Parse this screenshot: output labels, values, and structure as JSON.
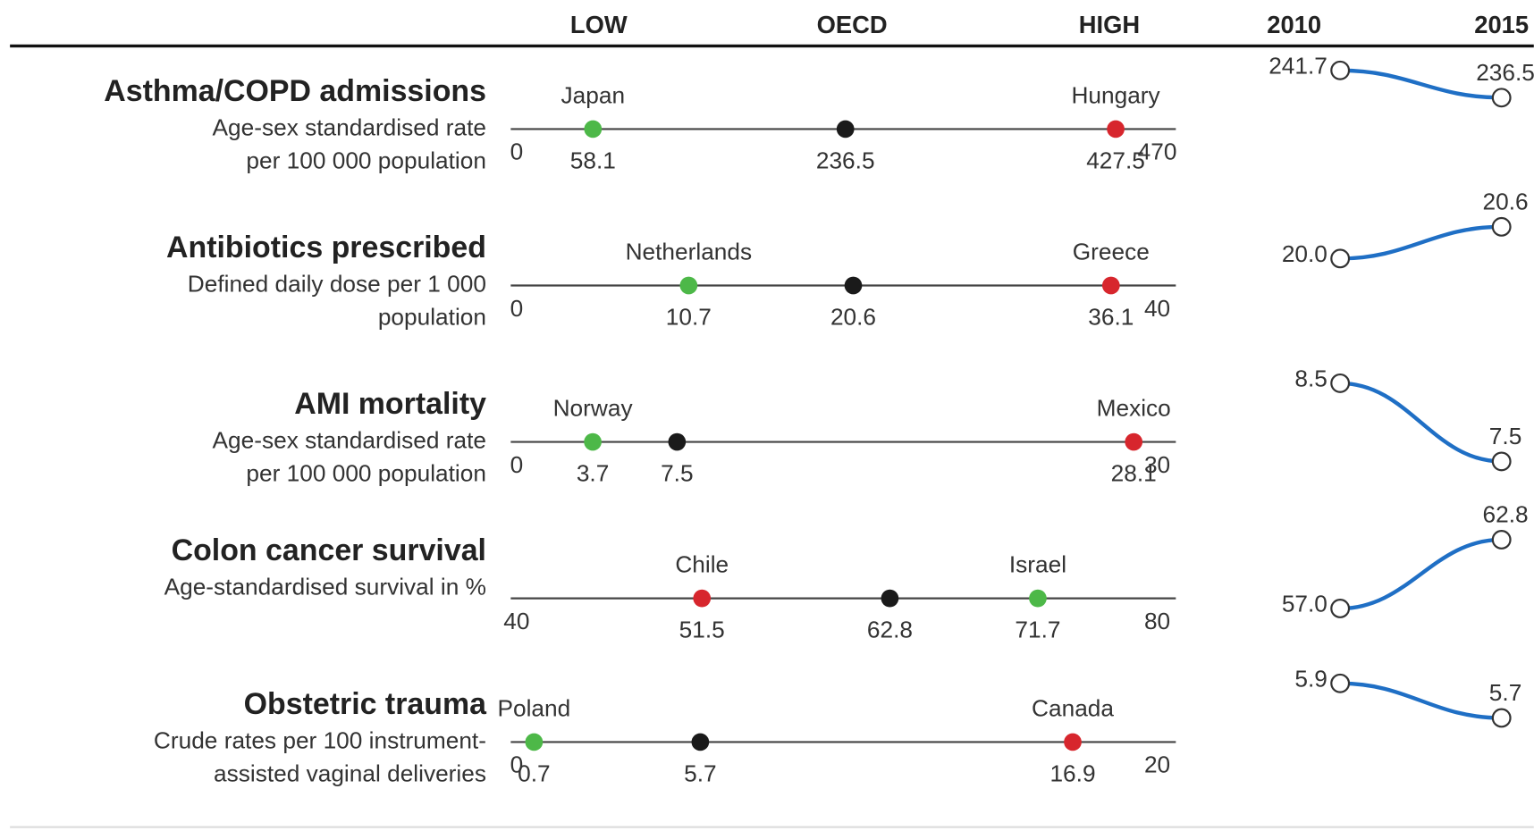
{
  "chart_data": {
    "type": "dot_range",
    "headers": {
      "low": "LOW",
      "oecd": "OECD",
      "high": "HIGH",
      "start": "2010",
      "end": "2015"
    },
    "trend_color": "#1f6fc5",
    "oecd_color": "#1a1a1a",
    "rows": [
      {
        "title": "Asthma/COPD admissions",
        "subtitle": [
          "Age-sex standardised rate",
          "per 100 000 population"
        ],
        "xlim": [
          0,
          470
        ],
        "low": {
          "name": "Japan",
          "value": 58.1,
          "color": "#4db848"
        },
        "oecd": {
          "value": 236.5
        },
        "high": {
          "name": "Hungary",
          "value": 427.5,
          "color": "#d7262d"
        },
        "trend": {
          "values": [
            241.7,
            236.5
          ]
        }
      },
      {
        "title": "Antibiotics prescribed",
        "subtitle": [
          "Defined daily dose per 1 000",
          "population"
        ],
        "xlim": [
          0,
          40
        ],
        "low": {
          "name": "Netherlands",
          "value": 10.7,
          "color": "#4db848"
        },
        "oecd": {
          "value": 20.6
        },
        "high": {
          "name": "Greece",
          "value": 36.1,
          "color": "#d7262d"
        },
        "trend": {
          "values": [
            20,
            20.6
          ],
          "value_labels": [
            "20.0",
            "20.6"
          ]
        }
      },
      {
        "title": "AMI mortality",
        "subtitle": [
          "Age-sex standardised rate",
          "per 100 000 population"
        ],
        "xlim": [
          0,
          30
        ],
        "low": {
          "name": "Norway",
          "value": 3.7,
          "color": "#4db848"
        },
        "oecd": {
          "value": 7.5
        },
        "high": {
          "name": "Mexico",
          "value": 28.1,
          "color": "#d7262d"
        },
        "trend": {
          "values": [
            8.5,
            7.5
          ]
        }
      },
      {
        "title": "Colon cancer survival",
        "subtitle": [
          "Age-standardised survival in %"
        ],
        "xlim": [
          40,
          80
        ],
        "low": {
          "name": "Chile",
          "value": 51.5,
          "color": "#d7262d"
        },
        "oecd": {
          "value": 62.8
        },
        "high": {
          "name": "Israel",
          "value": 71.7,
          "color": "#4db848"
        },
        "trend": {
          "values": [
            57,
            62.8
          ],
          "value_labels": [
            "57.0",
            "62.8"
          ]
        }
      },
      {
        "title": "Obstetric trauma",
        "subtitle": [
          "Crude rates per 100 instrument-",
          "assisted vaginal deliveries"
        ],
        "xlim": [
          0,
          20
        ],
        "low": {
          "name": "Poland",
          "value": 0.7,
          "color": "#4db848"
        },
        "oecd": {
          "value": 5.7
        },
        "high": {
          "name": "Canada",
          "value": 16.9,
          "color": "#d7262d"
        },
        "trend": {
          "values": [
            5.9,
            5.7
          ]
        }
      }
    ]
  }
}
